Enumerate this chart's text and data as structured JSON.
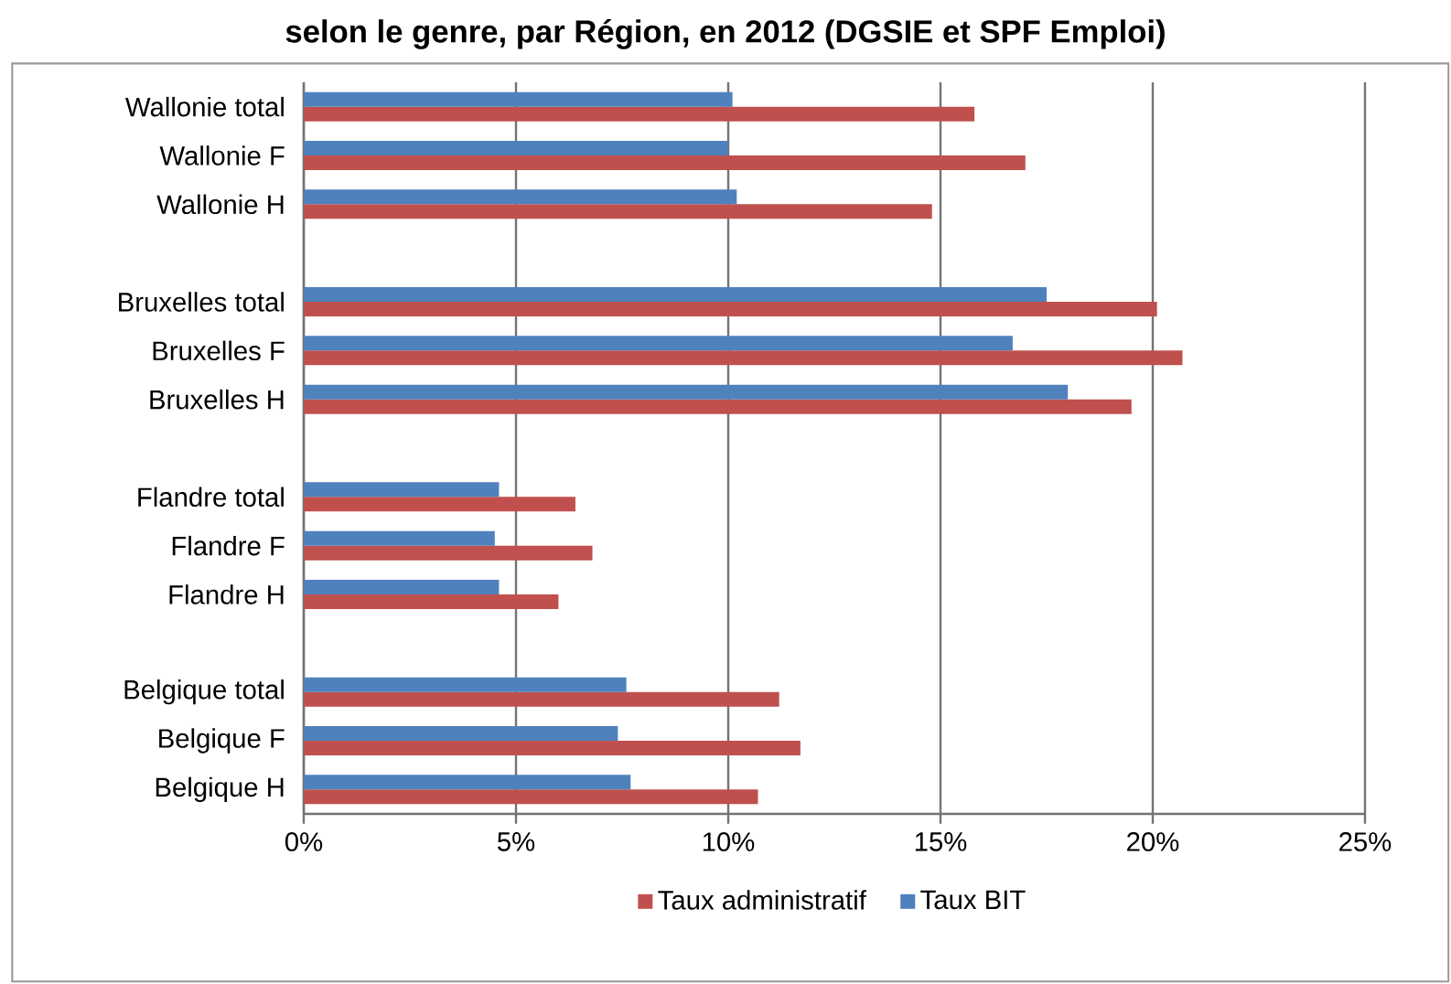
{
  "chart_data": {
    "type": "bar",
    "orientation": "horizontal",
    "title": "selon le genre, par Région, en 2012 (DGSIE et SPF Emploi)",
    "categories": [
      "Wallonie total",
      "Wallonie F",
      "Wallonie H",
      null,
      "Bruxelles total",
      "Bruxelles F",
      "Bruxelles H",
      null,
      "Flandre total",
      "Flandre F",
      "Flandre H",
      null,
      "Belgique total",
      "Belgique F",
      "Belgique H"
    ],
    "series": [
      {
        "name": "Taux administratif",
        "color": "#c0504d",
        "values": [
          15.8,
          17.0,
          14.8,
          null,
          20.1,
          20.7,
          19.5,
          null,
          6.4,
          6.8,
          6.0,
          null,
          11.2,
          11.7,
          10.7
        ]
      },
      {
        "name": "Taux BIT",
        "color": "#4f81bd",
        "values": [
          10.1,
          10.0,
          10.2,
          null,
          17.5,
          16.7,
          18.0,
          null,
          4.6,
          4.5,
          4.6,
          null,
          7.6,
          7.4,
          7.7
        ]
      }
    ],
    "xlim": [
      0,
      25
    ],
    "xticks": [
      {
        "value": 0,
        "label": "0%"
      },
      {
        "value": 5,
        "label": "5%"
      },
      {
        "value": 10,
        "label": "10%"
      },
      {
        "value": 15,
        "label": "15%"
      },
      {
        "value": 20,
        "label": "20%"
      },
      {
        "value": 25,
        "label": "25%"
      }
    ],
    "grid": "x",
    "legend": "bottom"
  }
}
